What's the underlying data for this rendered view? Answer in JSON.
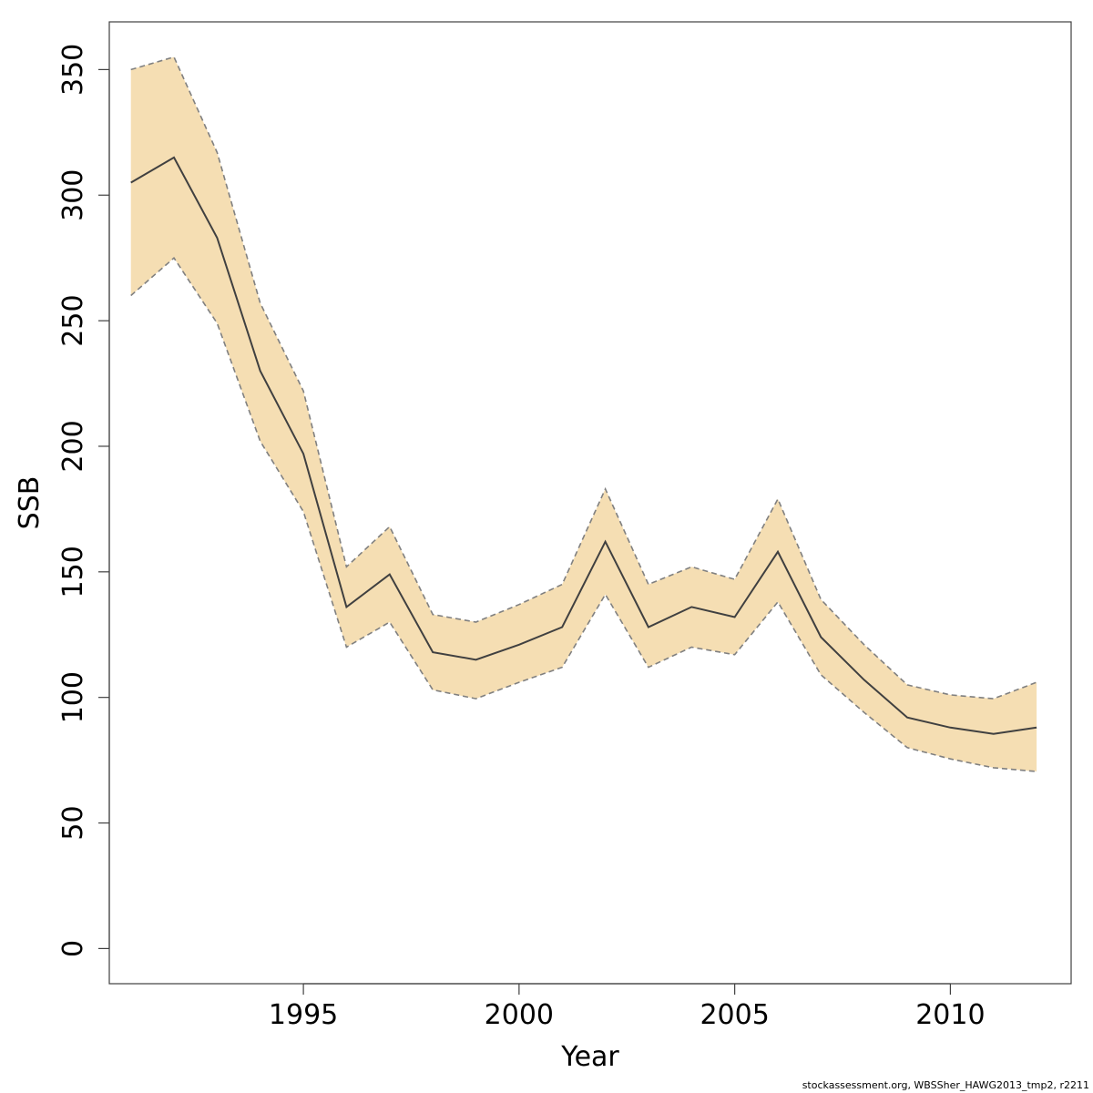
{
  "chart_data": {
    "type": "area",
    "xlabel": "Year",
    "ylabel": "SSB",
    "xlim": [
      1990.5,
      2012.8
    ],
    "ylim": [
      -14,
      369
    ],
    "xticks": [
      1995,
      2000,
      2005,
      2010
    ],
    "yticks": [
      0,
      50,
      100,
      150,
      200,
      250,
      300,
      350
    ],
    "grid": false,
    "x": [
      1991,
      1992,
      1993,
      1994,
      1995,
      1996,
      1997,
      1998,
      1999,
      2000,
      2001,
      2002,
      2003,
      2004,
      2005,
      2006,
      2007,
      2008,
      2009,
      2010,
      2011,
      2012
    ],
    "series": [
      {
        "values": [
          305,
          315,
          283,
          230,
          197,
          136,
          149,
          118,
          115,
          121,
          128,
          162,
          128,
          136,
          132,
          158,
          124,
          107,
          92,
          88,
          85.5,
          88
        ]
      },
      {
        "values": [
          260,
          275,
          249,
          202,
          174,
          120,
          130,
          103,
          99.5,
          106,
          112,
          141,
          112,
          120,
          117,
          138,
          109,
          94,
          80,
          75.5,
          72,
          70.5
        ]
      },
      {
        "values": [
          350,
          355,
          317,
          257,
          222,
          152,
          168,
          133,
          130,
          137,
          145,
          183,
          145,
          152,
          147,
          179,
          139,
          121,
          105,
          101,
          99.5,
          106
        ]
      }
    ],
    "colors": {
      "band": "#f5deb3",
      "line": "#404040",
      "bound": "#808080",
      "axis": "#404040"
    }
  },
  "footnote": "stockassessment.org, WBSSher_HAWG2013_tmp2, r2211"
}
